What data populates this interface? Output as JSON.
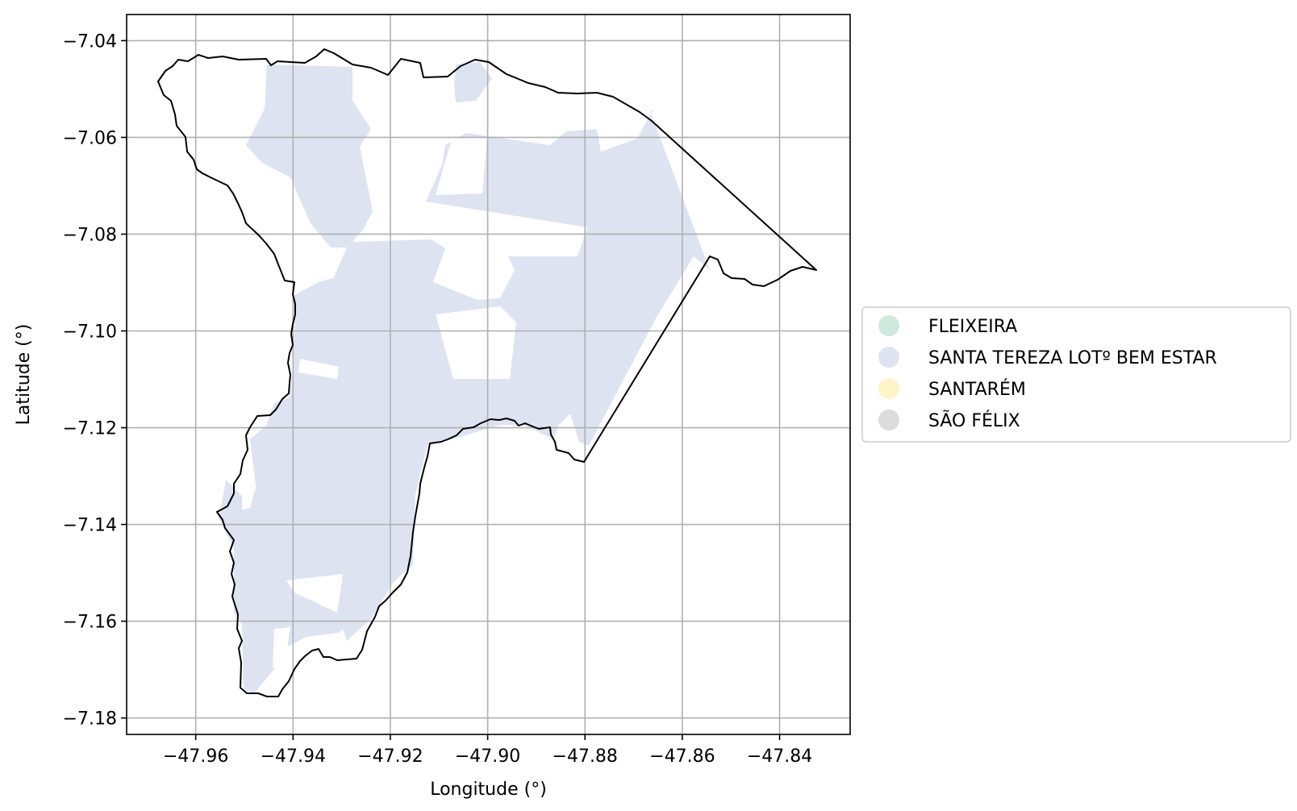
{
  "chart_data": {
    "type": "choropleth-map",
    "xlabel": "Longitude (°)",
    "ylabel": "Latitude (°)",
    "xlim": [
      -47.9742,
      -47.8255
    ],
    "ylim": [
      -7.1834,
      -7.0346
    ],
    "xticks": [
      -47.96,
      -47.94,
      -47.92,
      -47.9,
      -47.88,
      -47.86,
      -47.84
    ],
    "xtick_labels": [
      "−47.96",
      "−47.94",
      "−47.92",
      "−47.90",
      "−47.88",
      "−47.86",
      "−47.84"
    ],
    "yticks": [
      -7.04,
      -7.06,
      -7.08,
      -7.1,
      -7.12,
      -7.14,
      -7.16,
      -7.18
    ],
    "ytick_labels": [
      "−7.04",
      "−7.06",
      "−7.08",
      "−7.10",
      "−7.12",
      "−7.14",
      "−7.16",
      "−7.18"
    ],
    "grid": true,
    "legend_position": "right",
    "legend": [
      {
        "label": "FLEIXEIRA",
        "color": "#cfe9dc"
      },
      {
        "label": "SANTA TEREZA LOTº BEM ESTAR",
        "color": "#dee3f1"
      },
      {
        "label": "SANTARÉM",
        "color": "#fff3c8"
      },
      {
        "label": "SÃO FÉLIX",
        "color": "#dcdcdc"
      }
    ],
    "boundary_color": "#000000",
    "region_fill_color": "#dee3f1"
  }
}
